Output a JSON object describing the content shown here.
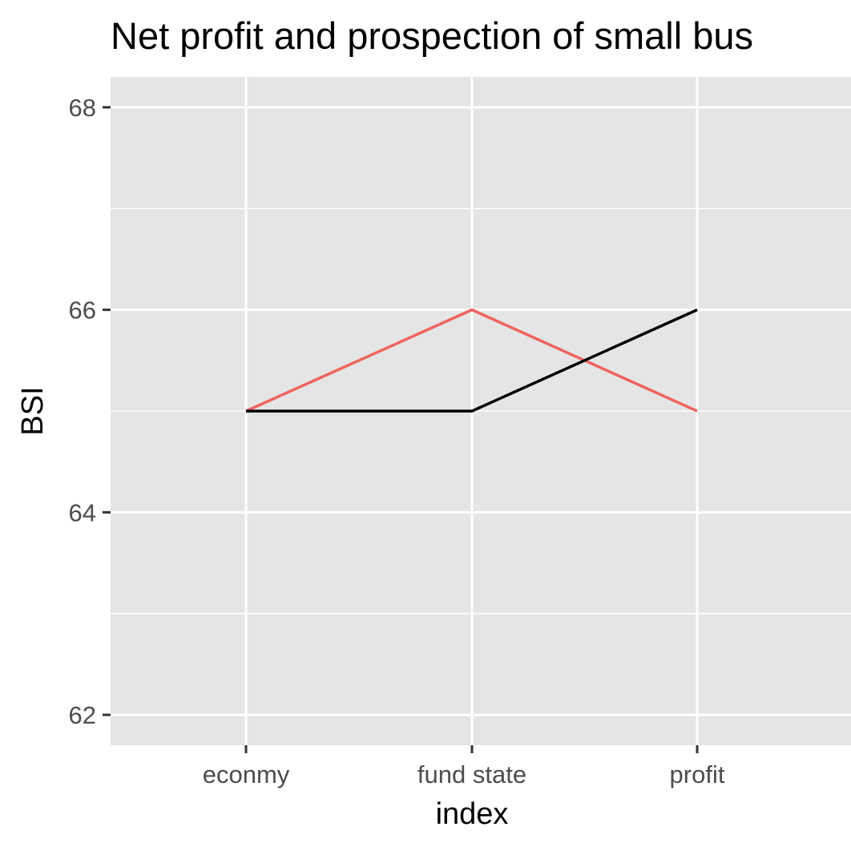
{
  "chart_data": {
    "type": "line",
    "title": "Net profit and prospection of small bus",
    "xlabel": "index",
    "ylabel": "BSI",
    "categories": [
      "econmy",
      "fund state",
      "profit"
    ],
    "ylim": [
      61.7,
      68.3
    ],
    "yticks": [
      62,
      64,
      66,
      68
    ],
    "series": [
      {
        "values": [
          65,
          66,
          65
        ],
        "color": "#f0635e"
      },
      {
        "values": [
          65,
          65,
          66
        ],
        "color": "#000000"
      }
    ],
    "grid": true,
    "panel_background": "#e5e5e5",
    "grid_color": "#ffffff",
    "legend": "none"
  }
}
